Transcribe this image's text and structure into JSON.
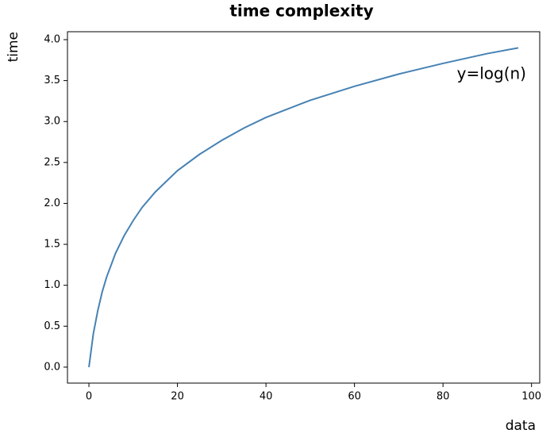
{
  "chart_data": {
    "type": "line",
    "title": "time complexity",
    "x_label": "data",
    "y_label": "time",
    "annotation": "y=log(n)",
    "x": [
      0,
      1,
      2,
      3,
      4,
      6,
      8,
      10,
      12,
      15,
      20,
      25,
      30,
      35,
      40,
      50,
      60,
      70,
      80,
      90,
      97
    ],
    "series": [
      {
        "name": "y=log(n)",
        "color": "#4682b4",
        "values": [
          0,
          0.41,
          0.69,
          0.92,
          1.1,
          1.39,
          1.61,
          1.79,
          1.95,
          2.14,
          2.4,
          2.6,
          2.77,
          2.92,
          3.05,
          3.26,
          3.43,
          3.58,
          3.71,
          3.83,
          3.9
        ]
      }
    ],
    "xlim": [
      -4.85,
      101.85
    ],
    "ylim": [
      -0.195,
      4.097
    ],
    "xticks": [
      0,
      20,
      40,
      60,
      80,
      100
    ],
    "yticks": [
      {
        "value": 0,
        "label": "0.0"
      },
      {
        "value": 0.5,
        "label": "0.5"
      },
      {
        "value": 1,
        "label": "1.0"
      },
      {
        "value": 1.5,
        "label": "1.5"
      },
      {
        "value": 2,
        "label": "2.0"
      },
      {
        "value": 2.5,
        "label": "2.5"
      },
      {
        "value": 3,
        "label": "3.0"
      },
      {
        "value": 3.5,
        "label": "3.5"
      },
      {
        "value": 4,
        "label": "4.0"
      }
    ],
    "grid": false
  }
}
